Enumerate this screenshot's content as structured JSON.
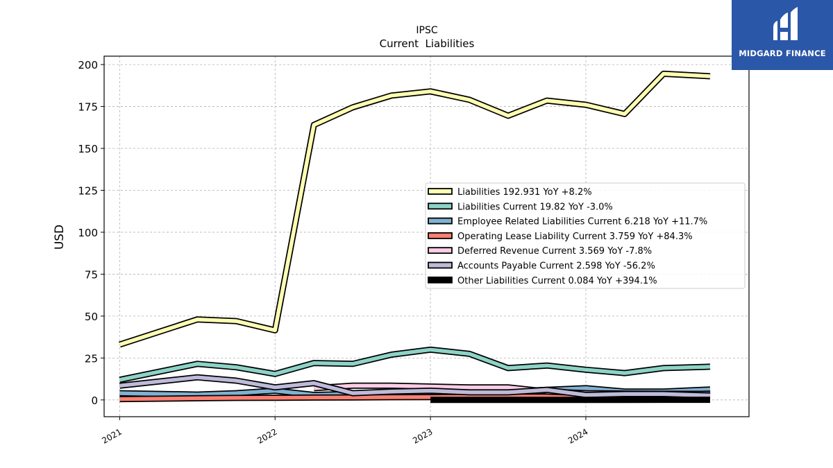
{
  "logo": {
    "text": "MIDGARD FINANCE",
    "color": "#2b57a8"
  },
  "chart_data": {
    "type": "line",
    "title": "IPSC",
    "subtitle": "Current  Liabilities",
    "ylabel": "USD",
    "xlabel": "",
    "ylim": [
      -10,
      205
    ],
    "xlim": [
      2020.9,
      2025.05
    ],
    "yticks": [
      0,
      25,
      50,
      75,
      100,
      125,
      150,
      175,
      200
    ],
    "xticks": [
      {
        "value": 2021,
        "label": "2021"
      },
      {
        "value": 2022,
        "label": "2022"
      },
      {
        "value": 2023,
        "label": "2023"
      },
      {
        "value": 2024,
        "label": "2024"
      }
    ],
    "grid": true,
    "legend_position": "center-right",
    "series": [
      {
        "name": "Liabilities",
        "legend": "Liabilities  192.931 YoY +8.2%",
        "color": "#ffffb3",
        "x": [
          2021.0,
          2021.5,
          2021.75,
          2022.0,
          2022.25,
          2022.5,
          2022.75,
          2023.0,
          2023.25,
          2023.5,
          2023.75,
          2024.0,
          2024.25,
          2024.5,
          2024.8
        ],
        "y": [
          33,
          48,
          47,
          41.5,
          164,
          174.5,
          181.5,
          184,
          179,
          169.5,
          178.5,
          176,
          170.5,
          194.5,
          193
        ]
      },
      {
        "name": "Liabilities Current",
        "legend": "Liabilities Current  19.82 YoY -3.0%",
        "color": "#8dd3c7",
        "x": [
          2021.0,
          2021.5,
          2021.75,
          2022.0,
          2022.25,
          2022.5,
          2022.75,
          2023.0,
          2023.25,
          2023.5,
          2023.75,
          2024.0,
          2024.25,
          2024.5,
          2024.8
        ],
        "y": [
          12,
          21.5,
          19.5,
          15.5,
          22,
          21.5,
          27,
          30,
          27.5,
          19,
          20.5,
          18,
          16,
          19,
          19.8
        ]
      },
      {
        "name": "Employee Related Liabilities Current",
        "legend": "Employee Related Liabilities Current  6.218 YoY +11.7%",
        "color": "#80b1d3",
        "x": [
          2021.0,
          2021.5,
          2021.75,
          2022.0,
          2022.25,
          2022.5,
          2022.75,
          2023.0,
          2023.25,
          2023.5,
          2023.75,
          2024.0,
          2024.25,
          2024.5,
          2024.8
        ],
        "y": [
          4,
          3.2,
          4,
          5.5,
          3,
          3.5,
          4,
          4.5,
          3.5,
          5,
          6,
          7,
          5,
          5,
          6.2
        ]
      },
      {
        "name": "Operating Lease Liability Current",
        "legend": "Operating Lease Liability Current  3.759 YoY +84.3%",
        "color": "#fb8072",
        "x": [
          2021.0,
          2021.5,
          2021.75,
          2022.0,
          2022.25,
          2022.5,
          2022.75,
          2023.0,
          2023.25,
          2023.5,
          2023.75,
          2024.0,
          2024.25,
          2024.5,
          2024.8
        ],
        "y": [
          0.5,
          1.0,
          1.2,
          1.3,
          1.4,
          1.5,
          1.6,
          1.7,
          1.8,
          2.0,
          2.0,
          2.0,
          2.5,
          3.0,
          3.76
        ]
      },
      {
        "name": "Deferred Revenue Current",
        "legend": "Deferred Revenue Current  3.569 YoY -7.8%",
        "color": "#fccde5",
        "x": [
          2022.25,
          2022.5,
          2022.75,
          2023.0,
          2023.25,
          2023.5,
          2023.75,
          2024.0,
          2024.25,
          2024.5,
          2024.8
        ],
        "y": [
          7,
          8.5,
          8.5,
          8,
          7.5,
          7.5,
          5,
          4,
          3.8,
          3.7,
          3.57
        ]
      },
      {
        "name": "Accounts Payable Current",
        "legend": "Accounts Payable Current  2.598 YoY -56.2%",
        "color": "#bebada",
        "x": [
          2021.0,
          2021.5,
          2021.75,
          2022.0,
          2022.25,
          2022.5,
          2022.75,
          2023.0,
          2023.25,
          2023.5,
          2023.75,
          2024.0,
          2024.25,
          2024.5,
          2024.8
        ],
        "y": [
          8.5,
          13.5,
          11.5,
          7.5,
          10,
          4,
          5,
          5.5,
          4.5,
          4.5,
          6,
          3,
          3.5,
          3.5,
          2.6
        ]
      },
      {
        "name": "Other Liabilities Current",
        "legend": "Other Liabilities Current  0.084 YoY +394.1%",
        "color": "#000000",
        "x": [
          2023.0,
          2023.25,
          2023.5,
          2023.75,
          2024.0,
          2024.25,
          2024.5,
          2024.8
        ],
        "y": [
          0.05,
          0.05,
          0.05,
          0.05,
          0.05,
          0.06,
          0.07,
          0.084
        ]
      }
    ]
  }
}
